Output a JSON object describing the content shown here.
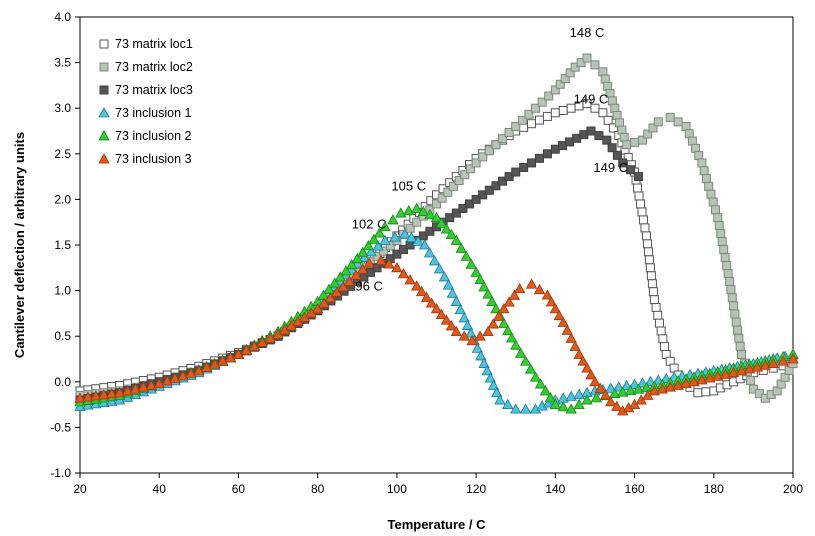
{
  "chart_data": {
    "type": "scatter",
    "title": "",
    "xlabel": "Temperature / C",
    "ylabel": "Cantilever deflection / arbitrary units",
    "xlim": [
      20,
      200
    ],
    "ylim": [
      -1.0,
      4.0
    ],
    "xticks": [
      "20",
      "40",
      "60",
      "80",
      "100",
      "120",
      "140",
      "160",
      "180",
      "200"
    ],
    "yticks": [
      "-1.0",
      "-0.5",
      "0.0",
      "0.5",
      "1.0",
      "1.5",
      "2.0",
      "2.5",
      "3.0",
      "3.5",
      "4.0"
    ],
    "grid": false,
    "legend_position": "top-left",
    "series": [
      {
        "name": "73 matrix loc1",
        "marker": "square",
        "fill": "#ffffff",
        "stroke": "#555555",
        "points": [
          [
            20,
            -0.1
          ],
          [
            30,
            -0.04
          ],
          [
            40,
            0.05
          ],
          [
            50,
            0.17
          ],
          [
            60,
            0.32
          ],
          [
            70,
            0.5
          ],
          [
            80,
            0.78
          ],
          [
            90,
            1.15
          ],
          [
            100,
            1.6
          ],
          [
            110,
            2.05
          ],
          [
            120,
            2.45
          ],
          [
            130,
            2.75
          ],
          [
            140,
            2.95
          ],
          [
            148,
            3.05
          ],
          [
            152,
            2.95
          ],
          [
            156,
            2.7
          ],
          [
            160,
            2.3
          ],
          [
            163,
            1.6
          ],
          [
            165,
            0.9
          ],
          [
            168,
            0.3
          ],
          [
            172,
            0.0
          ],
          [
            176,
            -0.12
          ],
          [
            180,
            -0.1
          ],
          [
            185,
            0.0
          ],
          [
            190,
            0.1
          ],
          [
            195,
            0.15
          ],
          [
            200,
            0.2
          ]
        ]
      },
      {
        "name": "73 matrix loc2",
        "marker": "square",
        "fill": "#b9c3b9",
        "stroke": "#7a8a7a",
        "points": [
          [
            20,
            -0.15
          ],
          [
            30,
            -0.1
          ],
          [
            40,
            0.0
          ],
          [
            50,
            0.13
          ],
          [
            60,
            0.3
          ],
          [
            70,
            0.5
          ],
          [
            80,
            0.8
          ],
          [
            90,
            1.2
          ],
          [
            100,
            1.55
          ],
          [
            110,
            1.95
          ],
          [
            120,
            2.4
          ],
          [
            130,
            2.8
          ],
          [
            140,
            3.2
          ],
          [
            145,
            3.45
          ],
          [
            148,
            3.55
          ],
          [
            152,
            3.4
          ],
          [
            155,
            3.0
          ],
          [
            158,
            2.6
          ],
          [
            162,
            2.65
          ],
          [
            166,
            2.85
          ],
          [
            169,
            2.9
          ],
          [
            173,
            2.8
          ],
          [
            177,
            2.4
          ],
          [
            181,
            1.8
          ],
          [
            184,
            1.1
          ],
          [
            187,
            0.3
          ],
          [
            190,
            -0.08
          ],
          [
            193,
            -0.18
          ],
          [
            196,
            -0.1
          ],
          [
            200,
            0.2
          ]
        ]
      },
      {
        "name": "73 matrix loc3",
        "marker": "square",
        "fill": "#555555",
        "stroke": "#404040",
        "points": [
          [
            20,
            -0.2
          ],
          [
            30,
            -0.12
          ],
          [
            40,
            0.0
          ],
          [
            50,
            0.12
          ],
          [
            60,
            0.3
          ],
          [
            70,
            0.5
          ],
          [
            80,
            0.78
          ],
          [
            90,
            1.1
          ],
          [
            100,
            1.4
          ],
          [
            110,
            1.7
          ],
          [
            120,
            2.0
          ],
          [
            130,
            2.3
          ],
          [
            140,
            2.55
          ],
          [
            149,
            2.75
          ],
          [
            153,
            2.65
          ],
          [
            157,
            2.4
          ],
          [
            161,
            2.25
          ]
        ]
      },
      {
        "name": "73 inclusion 1",
        "marker": "triangle",
        "fill": "#4cc4e0",
        "stroke": "#1f7a95",
        "points": [
          [
            20,
            -0.27
          ],
          [
            30,
            -0.2
          ],
          [
            40,
            -0.05
          ],
          [
            50,
            0.1
          ],
          [
            60,
            0.3
          ],
          [
            70,
            0.55
          ],
          [
            80,
            0.85
          ],
          [
            90,
            1.3
          ],
          [
            97,
            1.55
          ],
          [
            102,
            1.62
          ],
          [
            107,
            1.5
          ],
          [
            112,
            1.15
          ],
          [
            117,
            0.7
          ],
          [
            122,
            0.2
          ],
          [
            126,
            -0.2
          ],
          [
            130,
            -0.3
          ],
          [
            135,
            -0.3
          ],
          [
            140,
            -0.2
          ],
          [
            150,
            -0.1
          ],
          [
            160,
            -0.03
          ],
          [
            170,
            0.05
          ],
          [
            180,
            0.12
          ],
          [
            190,
            0.2
          ],
          [
            200,
            0.3
          ]
        ]
      },
      {
        "name": "73 inclusion 2",
        "marker": "triangle",
        "fill": "#33cc33",
        "stroke": "#168a16",
        "points": [
          [
            20,
            -0.22
          ],
          [
            30,
            -0.15
          ],
          [
            40,
            -0.02
          ],
          [
            50,
            0.13
          ],
          [
            60,
            0.3
          ],
          [
            70,
            0.55
          ],
          [
            80,
            0.88
          ],
          [
            90,
            1.35
          ],
          [
            97,
            1.7
          ],
          [
            101,
            1.85
          ],
          [
            105,
            1.9
          ],
          [
            110,
            1.8
          ],
          [
            115,
            1.55
          ],
          [
            120,
            1.2
          ],
          [
            125,
            0.8
          ],
          [
            130,
            0.4
          ],
          [
            135,
            0.05
          ],
          [
            140,
            -0.25
          ],
          [
            144,
            -0.3
          ],
          [
            148,
            -0.2
          ],
          [
            155,
            -0.13
          ],
          [
            165,
            -0.05
          ],
          [
            175,
            0.05
          ],
          [
            185,
            0.15
          ],
          [
            195,
            0.25
          ],
          [
            200,
            0.3
          ]
        ]
      },
      {
        "name": "73 inclusion 3",
        "marker": "triangle",
        "fill": "#e2581b",
        "stroke": "#9a3a10",
        "points": [
          [
            20,
            -0.18
          ],
          [
            30,
            -0.12
          ],
          [
            40,
            -0.02
          ],
          [
            50,
            0.12
          ],
          [
            60,
            0.3
          ],
          [
            70,
            0.52
          ],
          [
            80,
            0.8
          ],
          [
            88,
            1.1
          ],
          [
            93,
            1.3
          ],
          [
            96,
            1.33
          ],
          [
            100,
            1.25
          ],
          [
            105,
            1.05
          ],
          [
            110,
            0.8
          ],
          [
            115,
            0.55
          ],
          [
            119,
            0.45
          ],
          [
            123,
            0.55
          ],
          [
            127,
            0.8
          ],
          [
            131,
            1.02
          ],
          [
            134,
            1.07
          ],
          [
            138,
            0.95
          ],
          [
            142,
            0.65
          ],
          [
            146,
            0.3
          ],
          [
            150,
            0.0
          ],
          [
            154,
            -0.22
          ],
          [
            157,
            -0.32
          ],
          [
            160,
            -0.25
          ],
          [
            165,
            -0.1
          ],
          [
            175,
            0.0
          ],
          [
            185,
            0.1
          ],
          [
            195,
            0.2
          ],
          [
            200,
            0.25
          ]
        ]
      }
    ],
    "annotations": [
      {
        "text": "148 C",
        "x": 148,
        "y": 3.78
      },
      {
        "text": "149 C",
        "x": 149,
        "y": 3.05
      },
      {
        "text": "149 C",
        "x": 154,
        "y": 2.3
      },
      {
        "text": "105 C",
        "x": 103,
        "y": 2.1
      },
      {
        "text": "102 C",
        "x": 93,
        "y": 1.68
      },
      {
        "text": "96 C",
        "x": 93,
        "y": 1.0
      }
    ]
  }
}
